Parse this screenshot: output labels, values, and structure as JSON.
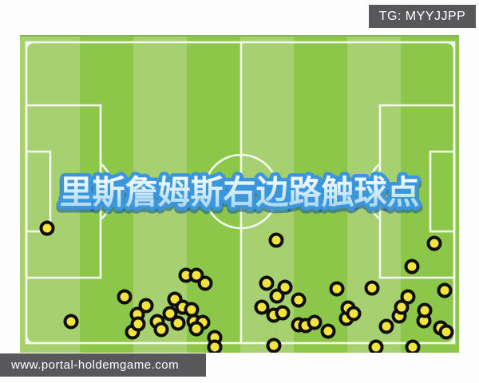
{
  "header_badge": {
    "text": "TG: MYYJJPP",
    "bg": "#58585a",
    "color": "#ffffff"
  },
  "footer_badge": {
    "text": "www.portal-holdemgame.com",
    "bg": "#58585a",
    "color": "#ffffff"
  },
  "pitch": {
    "stripe_light": "#a7d170",
    "stripe_dark": "#8cc749",
    "line_color": "#f4f9ee",
    "dot_fill": "#f2e43c",
    "dot_stroke": "#0e0e0e",
    "title_text": "里斯詹姆斯右边路触球点",
    "title_fill_top": "#f2faff",
    "title_fill_bottom": "#9fd2f0",
    "title_stroke": "#3b97dd",
    "title_shadow": "rgba(21,80,143,0.55)"
  },
  "chart_data": {
    "type": "scatter",
    "title": "里斯詹姆斯右边路触球点",
    "description": "Touch points plotted on a horizontal football pitch; coordinates are pixels in the 550x396 pitch graphic (origin top-left).",
    "x_range": [
      0,
      550
    ],
    "y_range": [
      0,
      396
    ],
    "marker": {
      "shape": "circle",
      "fill": "#f2e43c",
      "stroke": "#0e0e0e",
      "radius": 7.5,
      "stroke_width": 4
    },
    "points": [
      [
        34,
        240
      ],
      [
        64,
        357
      ],
      [
        131,
        326
      ],
      [
        141,
        370
      ],
      [
        147,
        348
      ],
      [
        148,
        360
      ],
      [
        158,
        337
      ],
      [
        172,
        357
      ],
      [
        177,
        367
      ],
      [
        188,
        347
      ],
      [
        194,
        329
      ],
      [
        198,
        359
      ],
      [
        204,
        339
      ],
      [
        208,
        299
      ],
      [
        215,
        342
      ],
      [
        218,
        357
      ],
      [
        221,
        299
      ],
      [
        229,
        358
      ],
      [
        232,
        309
      ],
      [
        221,
        366
      ],
      [
        244,
        377
      ],
      [
        244,
        389
      ],
      [
        303,
        339
      ],
      [
        309,
        309
      ],
      [
        318,
        349
      ],
      [
        318,
        387
      ],
      [
        321,
        255
      ],
      [
        322,
        325
      ],
      [
        329,
        346
      ],
      [
        332,
        314
      ],
      [
        349,
        330
      ],
      [
        349,
        361
      ],
      [
        358,
        362
      ],
      [
        369,
        358
      ],
      [
        386,
        369
      ],
      [
        397,
        316
      ],
      [
        409,
        353
      ],
      [
        411,
        340
      ],
      [
        418,
        347
      ],
      [
        441,
        315
      ],
      [
        446,
        389
      ],
      [
        459,
        363
      ],
      [
        475,
        350
      ],
      [
        478,
        339
      ],
      [
        486,
        326
      ],
      [
        491,
        288
      ],
      [
        492,
        389
      ],
      [
        506,
        356
      ],
      [
        507,
        343
      ],
      [
        519,
        259
      ],
      [
        527,
        365
      ],
      [
        534,
        370
      ],
      [
        532,
        318
      ]
    ]
  }
}
